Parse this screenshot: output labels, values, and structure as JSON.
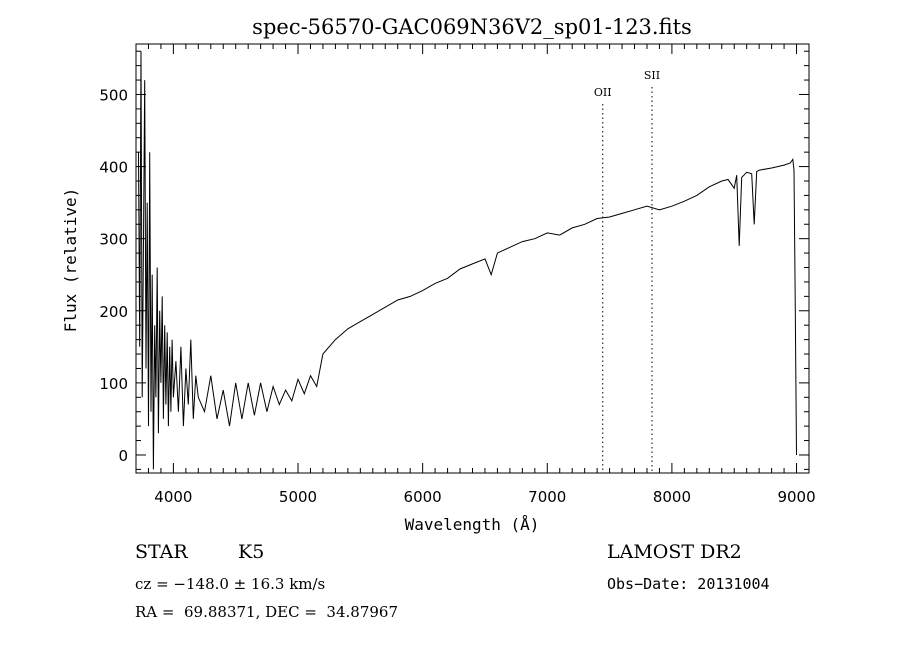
{
  "chart_data": {
    "type": "line",
    "title": "spec-56570-GAC069N36V2_sp01-123.fits",
    "xlabel": "Wavelength (Å)",
    "ylabel": "Flux (relative)",
    "xlim": [
      3700,
      9100
    ],
    "ylim": [
      -25,
      570
    ],
    "xticks": [
      "4000",
      "5000",
      "6000",
      "7000",
      "8000",
      "9000"
    ],
    "xtick_values": [
      4000,
      5000,
      6000,
      7000,
      8000,
      9000
    ],
    "yticks": [
      "0",
      "100",
      "200",
      "300",
      "400",
      "500"
    ],
    "ytick_values": [
      0,
      100,
      200,
      300,
      400,
      500
    ],
    "grid": false,
    "line_color": "#000000",
    "series": [
      {
        "x": [
          3720,
          3730,
          3740,
          3750,
          3760,
          3770,
          3780,
          3790,
          3800,
          3810,
          3820,
          3830,
          3840,
          3850,
          3860,
          3870,
          3880,
          3890,
          3900,
          3910,
          3920,
          3930,
          3940,
          3950,
          3960,
          3970,
          3980,
          3990,
          4000,
          4020,
          4040,
          4060,
          4080,
          4100,
          4120,
          4140,
          4160,
          4180,
          4200,
          4250,
          4300,
          4350,
          4400,
          4450,
          4500,
          4550,
          4600,
          4650,
          4700,
          4750,
          4800,
          4850,
          4900,
          4950,
          5000,
          5050,
          5100,
          5150,
          5200,
          5300,
          5400,
          5500,
          5600,
          5700,
          5800,
          5900,
          6000,
          6100,
          6200,
          6300,
          6400,
          6500,
          6550,
          6600,
          6700,
          6800,
          6900,
          7000,
          7100,
          7200,
          7300,
          7400,
          7500,
          7600,
          7700,
          7800,
          7900,
          8000,
          8100,
          8200,
          8300,
          8400,
          8450,
          8500,
          8520,
          8540,
          8560,
          8600,
          8640,
          8660,
          8680,
          8700,
          8800,
          8900,
          8950,
          8970,
          8980,
          8990,
          9000
        ],
        "y": [
          420,
          150,
          560,
          80,
          300,
          520,
          120,
          350,
          40,
          420,
          60,
          250,
          -20,
          180,
          80,
          260,
          30,
          200,
          100,
          220,
          50,
          180,
          70,
          170,
          40,
          150,
          60,
          160,
          80,
          130,
          60,
          150,
          40,
          120,
          70,
          160,
          50,
          110,
          80,
          60,
          110,
          50,
          90,
          40,
          100,
          50,
          100,
          55,
          100,
          60,
          95,
          70,
          90,
          75,
          105,
          85,
          110,
          95,
          140,
          160,
          175,
          185,
          195,
          205,
          215,
          220,
          228,
          238,
          245,
          258,
          265,
          272,
          250,
          280,
          288,
          296,
          300,
          308,
          305,
          315,
          320,
          328,
          330,
          335,
          340,
          345,
          340,
          345,
          352,
          360,
          372,
          380,
          382,
          370,
          388,
          290,
          385,
          392,
          390,
          320,
          393,
          395,
          398,
          402,
          405,
          410,
          395,
          200,
          0
        ]
      }
    ],
    "lines": [
      {
        "label": "OII",
        "x": 7445
      },
      {
        "label": "SII",
        "x": 7840
      }
    ]
  },
  "footer": {
    "object_class": "STAR",
    "subclass": "K5",
    "survey": "LAMOST DR2",
    "cz_line": "cz = −148.0 ± 16.3 km/s",
    "obs_date": "Obs−Date: 20131004",
    "coords": "RA =  69.88371, DEC =  34.87967"
  }
}
